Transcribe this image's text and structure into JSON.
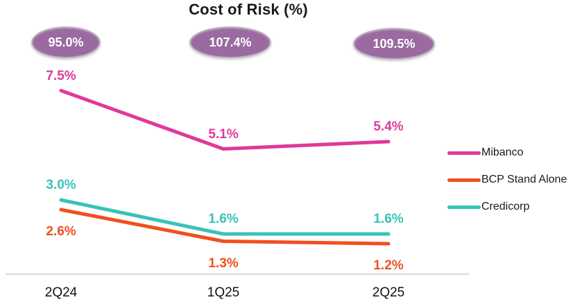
{
  "chart_data": {
    "type": "line",
    "title": "Cost of Risk (%)",
    "categories": [
      "2Q24",
      "1Q25",
      "2Q25"
    ],
    "series": [
      {
        "name": "Mibanco",
        "color": "#e0399b",
        "values": [
          7.5,
          5.1,
          5.4
        ],
        "labels": [
          "7.5%",
          "5.1%",
          "5.4%"
        ],
        "label_placement": "above"
      },
      {
        "name": "BCP Stand Alone",
        "color": "#f0501e",
        "values": [
          2.6,
          1.3,
          1.2
        ],
        "labels": [
          "2.6%",
          "1.3%",
          "1.2%"
        ],
        "label_placement": "below"
      },
      {
        "name": "Credicorp",
        "color": "#38c3b8",
        "values": [
          3.0,
          1.6,
          1.6
        ],
        "labels": [
          "3.0%",
          "1.6%",
          "1.6%"
        ],
        "label_placement": "above"
      }
    ],
    "annotations": {
      "style": "oval-badge",
      "color": "#9b6aa1",
      "values": [
        "95.0%",
        "107.4%",
        "109.5%"
      ]
    },
    "legend_position": "right",
    "grid": false,
    "xlabel": "",
    "ylabel": "",
    "ylim": [
      0,
      8.6
    ]
  }
}
